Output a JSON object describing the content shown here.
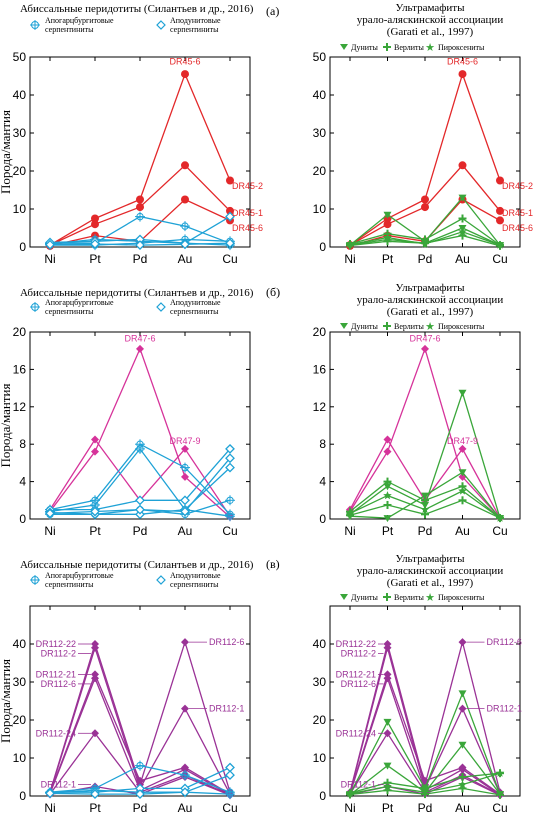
{
  "panel_labels": [
    "(а)",
    "(б)",
    "(в)"
  ],
  "legend_left": {
    "title": "Абиссальные перидотиты (Силантьев и др., 2016)",
    "items": [
      {
        "label": "Апогарцбургитовые",
        "label2": "серпентиниты",
        "marker": "cross-circle",
        "color": "#1fa2d6"
      },
      {
        "label": "Аподунитовые",
        "label2": "серпентиниты",
        "marker": "diamond-open",
        "color": "#1fa2d6"
      }
    ]
  },
  "legend_right": {
    "title1": "Ультрамафиты",
    "title2": "урало-аляскинской ассоциации",
    "title3": "(Garati et al., 1997)",
    "items": [
      {
        "label": "Дуниты",
        "marker": "triangle-down",
        "color": "#3aa63a"
      },
      {
        "label": "Верлиты",
        "marker": "plus",
        "color": "#3aa63a"
      },
      {
        "label": "Пироксениты",
        "marker": "star",
        "color": "#3aa63a"
      }
    ]
  },
  "chart_data": [
    {
      "id": "a-left",
      "type": "line",
      "ylabel": "Порода/мантия",
      "categories": [
        "Ni",
        "Pt",
        "Pd",
        "Au",
        "Cu"
      ],
      "ylim": [
        0,
        50
      ],
      "yticks": [
        0,
        10,
        20,
        30,
        40,
        50
      ],
      "series": [
        {
          "color": "#e3282a",
          "marker": "dot",
          "values": [
            0.5,
            7.5,
            12.5,
            45.5,
            17.5
          ]
        },
        {
          "color": "#e3282a",
          "marker": "dot",
          "values": [
            0.5,
            6,
            10.5,
            21.5,
            9.5
          ]
        },
        {
          "color": "#e3282a",
          "marker": "dot",
          "values": [
            0.3,
            3,
            1.5,
            12.5,
            7
          ]
        },
        {
          "color": "#1fa2d6",
          "marker": "cross-circle",
          "values": [
            1,
            1,
            8,
            5.5,
            1
          ]
        },
        {
          "color": "#1fa2d6",
          "marker": "cross-circle",
          "values": [
            0.8,
            2,
            1.5,
            1,
            0.5
          ]
        },
        {
          "color": "#1fa2d6",
          "marker": "cross-circle",
          "values": [
            0.5,
            0.5,
            1,
            2,
            1.5
          ]
        },
        {
          "color": "#1fa2d6",
          "marker": "diamond-open",
          "values": [
            1.2,
            1.5,
            2,
            1,
            8
          ]
        },
        {
          "color": "#1fa2d6",
          "marker": "diamond-open",
          "values": [
            0.6,
            0.8,
            0.5,
            0.7,
            1
          ]
        }
      ],
      "annotations": [
        {
          "text": "DR45-6",
          "color": "#e3282a",
          "cat": 3,
          "y": 48
        },
        {
          "text": "DR45-2",
          "color": "#e3282a",
          "cat": 4,
          "y": 16
        },
        {
          "text": "DR45-1",
          "color": "#e3282a",
          "cat": 4,
          "y": 9
        },
        {
          "text": "DR45-6",
          "color": "#e3282a",
          "cat": 4,
          "y": 5
        }
      ]
    },
    {
      "id": "a-right",
      "type": "line",
      "ylabel": "",
      "categories": [
        "Ni",
        "Pt",
        "Pd",
        "Au",
        "Cu"
      ],
      "ylim": [
        0,
        50
      ],
      "yticks": [
        0,
        10,
        20,
        30,
        40,
        50
      ],
      "series": [
        {
          "color": "#e3282a",
          "marker": "dot",
          "values": [
            0.5,
            7.5,
            12.5,
            45.5,
            17.5
          ]
        },
        {
          "color": "#e3282a",
          "marker": "dot",
          "values": [
            0.5,
            6,
            10.5,
            21.5,
            9.5
          ]
        },
        {
          "color": "#e3282a",
          "marker": "dot",
          "values": [
            0.3,
            3,
            1.5,
            12.5,
            7
          ]
        },
        {
          "color": "#3aa63a",
          "marker": "triangle-down",
          "values": [
            0.5,
            8.5,
            1.5,
            13,
            0.5
          ]
        },
        {
          "color": "#3aa63a",
          "marker": "triangle-down",
          "values": [
            0.5,
            2,
            1,
            5,
            0.5
          ]
        },
        {
          "color": "#3aa63a",
          "marker": "plus",
          "values": [
            0.8,
            3.5,
            2,
            7.5,
            0.5
          ]
        },
        {
          "color": "#3aa63a",
          "marker": "plus",
          "values": [
            0.4,
            1.5,
            1,
            3,
            0.3
          ]
        },
        {
          "color": "#3aa63a",
          "marker": "star",
          "values": [
            0.6,
            2.5,
            0.8,
            4,
            0.5
          ]
        }
      ],
      "annotations": [
        {
          "text": "DR45-6",
          "color": "#e3282a",
          "cat": 3,
          "y": 48
        },
        {
          "text": "DR45-2",
          "color": "#e3282a",
          "cat": 4,
          "y": 16
        },
        {
          "text": "DR45-1",
          "color": "#e3282a",
          "cat": 4,
          "y": 9
        },
        {
          "text": "DR45-6",
          "color": "#e3282a",
          "cat": 4,
          "y": 5
        }
      ]
    },
    {
      "id": "b-left",
      "type": "line",
      "ylabel": "Порода/мантия",
      "categories": [
        "Ni",
        "Pt",
        "Pd",
        "Au",
        "Cu"
      ],
      "ylim": [
        0,
        20
      ],
      "yticks": [
        0,
        4,
        8,
        12,
        16,
        20
      ],
      "series": [
        {
          "color": "#d6339a",
          "marker": "diamond",
          "values": [
            1,
            8.5,
            2,
            7.5,
            0.3
          ]
        },
        {
          "color": "#d6339a",
          "marker": "diamond",
          "values": [
            0.8,
            7.2,
            18.2,
            4.5,
            0.2
          ]
        },
        {
          "color": "#1fa2d6",
          "marker": "cross-circle",
          "values": [
            1,
            2,
            8,
            5.5,
            0.5
          ]
        },
        {
          "color": "#1fa2d6",
          "marker": "cross-circle",
          "values": [
            0.8,
            1.5,
            7.5,
            1,
            0.3
          ]
        },
        {
          "color": "#1fa2d6",
          "marker": "cross-circle",
          "values": [
            0.5,
            0.5,
            1,
            0.5,
            2
          ]
        },
        {
          "color": "#1fa2d6",
          "marker": "diamond-open",
          "values": [
            1,
            1,
            2,
            2,
            7.5
          ]
        },
        {
          "color": "#1fa2d6",
          "marker": "diamond-open",
          "values": [
            0.7,
            0.5,
            0.5,
            1,
            5.5
          ]
        },
        {
          "color": "#1fa2d6",
          "marker": "diamond-open",
          "values": [
            0.6,
            0.8,
            1,
            0.8,
            6.5
          ]
        }
      ],
      "annotations": [
        {
          "text": "DR47-6",
          "color": "#d6339a",
          "cat": 2,
          "y": 19
        },
        {
          "text": "DR47-9",
          "color": "#d6339a",
          "cat": 3,
          "y": 8
        }
      ]
    },
    {
      "id": "b-right",
      "type": "line",
      "ylabel": "",
      "categories": [
        "Ni",
        "Pt",
        "Pd",
        "Au",
        "Cu"
      ],
      "ylim": [
        0,
        20
      ],
      "yticks": [
        0,
        4,
        8,
        12,
        16,
        20
      ],
      "series": [
        {
          "color": "#d6339a",
          "marker": "diamond",
          "values": [
            1,
            8.5,
            2,
            7.5,
            0.1
          ]
        },
        {
          "color": "#d6339a",
          "marker": "diamond",
          "values": [
            0.8,
            7.2,
            18.2,
            4.5,
            0.1
          ]
        },
        {
          "color": "#3aa63a",
          "marker": "triangle-down",
          "values": [
            0.5,
            3.5,
            1.5,
            13.5,
            0.1
          ]
        },
        {
          "color": "#3aa63a",
          "marker": "triangle-down",
          "values": [
            0.3,
            0.1,
            2.5,
            5,
            0.1
          ]
        },
        {
          "color": "#3aa63a",
          "marker": "plus",
          "values": [
            0.8,
            4,
            2,
            3.5,
            0.1
          ]
        },
        {
          "color": "#3aa63a",
          "marker": "plus",
          "values": [
            0.4,
            1.5,
            0.5,
            2,
            0.1
          ]
        },
        {
          "color": "#3aa63a",
          "marker": "star",
          "values": [
            0.6,
            2.5,
            1,
            3,
            0.1
          ]
        }
      ],
      "annotations": [
        {
          "text": "DR47-6",
          "color": "#d6339a",
          "cat": 2,
          "y": 19
        },
        {
          "text": "DR47-9",
          "color": "#d6339a",
          "cat": 3,
          "y": 8
        }
      ]
    },
    {
      "id": "c-left",
      "type": "line",
      "ylabel": "Порода/мантия",
      "categories": [
        "Ni",
        "Pt",
        "Pd",
        "Au",
        "Cu"
      ],
      "ylim": [
        0,
        50
      ],
      "yticks": [
        0,
        10,
        20,
        30,
        40
      ],
      "series": [
        {
          "color": "#9a3296",
          "marker": "diamond",
          "values": [
            1,
            40,
            3,
            40.5,
            1
          ]
        },
        {
          "color": "#9a3296",
          "marker": "diamond",
          "values": [
            0.8,
            39,
            2,
            23,
            0.5
          ]
        },
        {
          "color": "#9a3296",
          "marker": "diamond",
          "values": [
            0.8,
            32,
            4,
            7.5,
            0.5
          ]
        },
        {
          "color": "#9a3296",
          "marker": "diamond",
          "values": [
            0.6,
            31,
            1.5,
            7,
            0.3
          ]
        },
        {
          "color": "#9a3296",
          "marker": "diamond",
          "values": [
            0.5,
            16.5,
            1,
            5.5,
            0.3
          ]
        },
        {
          "color": "#9a3296",
          "marker": "diamond",
          "values": [
            0.4,
            2.5,
            0.5,
            5,
            0.2
          ]
        },
        {
          "color": "#1fa2d6",
          "marker": "cross-circle",
          "values": [
            1,
            2,
            8,
            5.5,
            1
          ]
        },
        {
          "color": "#1fa2d6",
          "marker": "cross-circle",
          "values": [
            0.8,
            1.5,
            1,
            1,
            0.5
          ]
        },
        {
          "color": "#1fa2d6",
          "marker": "diamond-open",
          "values": [
            1,
            1,
            2,
            2,
            7.5
          ]
        },
        {
          "color": "#1fa2d6",
          "marker": "diamond-open",
          "values": [
            0.7,
            0.5,
            0.5,
            1,
            5.5
          ]
        }
      ],
      "annotations": [
        {
          "text": "DR112-22",
          "color": "#9a3296",
          "cat": 1,
          "y": 40,
          "side": "left"
        },
        {
          "text": "DR112-2",
          "color": "#9a3296",
          "cat": 1,
          "y": 37.5,
          "side": "left"
        },
        {
          "text": "DR112-21",
          "color": "#9a3296",
          "cat": 1,
          "y": 32,
          "side": "left"
        },
        {
          "text": "DR112-6",
          "color": "#9a3296",
          "cat": 1,
          "y": 29.5,
          "side": "left"
        },
        {
          "text": "DR112-24",
          "color": "#9a3296",
          "cat": 1,
          "y": 16.5,
          "side": "left"
        },
        {
          "text": "DR112-1",
          "color": "#9a3296",
          "cat": 1,
          "y": 3,
          "side": "left"
        },
        {
          "text": "DR112-6",
          "color": "#9a3296",
          "cat": 3,
          "y": 40.5,
          "side": "right"
        },
        {
          "text": "DR112-1",
          "color": "#9a3296",
          "cat": 3,
          "y": 23,
          "side": "right"
        }
      ]
    },
    {
      "id": "c-right",
      "type": "line",
      "ylabel": "",
      "categories": [
        "Ni",
        "Pt",
        "Pd",
        "Au",
        "Cu"
      ],
      "ylim": [
        0,
        50
      ],
      "yticks": [
        0,
        10,
        20,
        30,
        40
      ],
      "series": [
        {
          "color": "#9a3296",
          "marker": "diamond",
          "values": [
            1,
            40,
            3,
            40.5,
            1
          ]
        },
        {
          "color": "#9a3296",
          "marker": "diamond",
          "values": [
            0.8,
            39,
            2,
            23,
            0.5
          ]
        },
        {
          "color": "#9a3296",
          "marker": "diamond",
          "values": [
            0.8,
            32,
            4,
            7.5,
            0.5
          ]
        },
        {
          "color": "#9a3296",
          "marker": "diamond",
          "values": [
            0.6,
            31,
            1.5,
            7,
            0.3
          ]
        },
        {
          "color": "#9a3296",
          "marker": "diamond",
          "values": [
            0.5,
            16.5,
            1,
            5.5,
            0.3
          ]
        },
        {
          "color": "#9a3296",
          "marker": "diamond",
          "values": [
            0.4,
            2.5,
            0.5,
            5,
            0.2
          ]
        },
        {
          "color": "#3aa63a",
          "marker": "triangle-down",
          "values": [
            0.5,
            19.5,
            2,
            27,
            0.5
          ]
        },
        {
          "color": "#3aa63a",
          "marker": "triangle-down",
          "values": [
            0.3,
            8,
            1,
            13.5,
            0.5
          ]
        },
        {
          "color": "#3aa63a",
          "marker": "plus",
          "values": [
            0.8,
            3.5,
            2,
            5,
            6
          ]
        },
        {
          "color": "#3aa63a",
          "marker": "plus",
          "values": [
            0.4,
            1.5,
            0.5,
            2,
            0.3
          ]
        },
        {
          "color": "#3aa63a",
          "marker": "star",
          "values": [
            0.6,
            2.5,
            1,
            3,
            6
          ]
        }
      ],
      "annotations": [
        {
          "text": "DR112-22",
          "color": "#9a3296",
          "cat": 1,
          "y": 40,
          "side": "left"
        },
        {
          "text": "DR112-2",
          "color": "#9a3296",
          "cat": 1,
          "y": 37.5,
          "side": "left"
        },
        {
          "text": "DR112-21",
          "color": "#9a3296",
          "cat": 1,
          "y": 32,
          "side": "left"
        },
        {
          "text": "DR112-6",
          "color": "#9a3296",
          "cat": 1,
          "y": 29.5,
          "side": "left"
        },
        {
          "text": "DR112-24",
          "color": "#9a3296",
          "cat": 1,
          "y": 16.5,
          "side": "left"
        },
        {
          "text": "DR112-1",
          "color": "#9a3296",
          "cat": 1,
          "y": 3,
          "side": "left"
        },
        {
          "text": "DR112-6",
          "color": "#9a3296",
          "cat": 3,
          "y": 40.5,
          "side": "right"
        },
        {
          "text": "DR112-1",
          "color": "#9a3296",
          "cat": 3,
          "y": 23,
          "side": "right"
        }
      ]
    }
  ]
}
